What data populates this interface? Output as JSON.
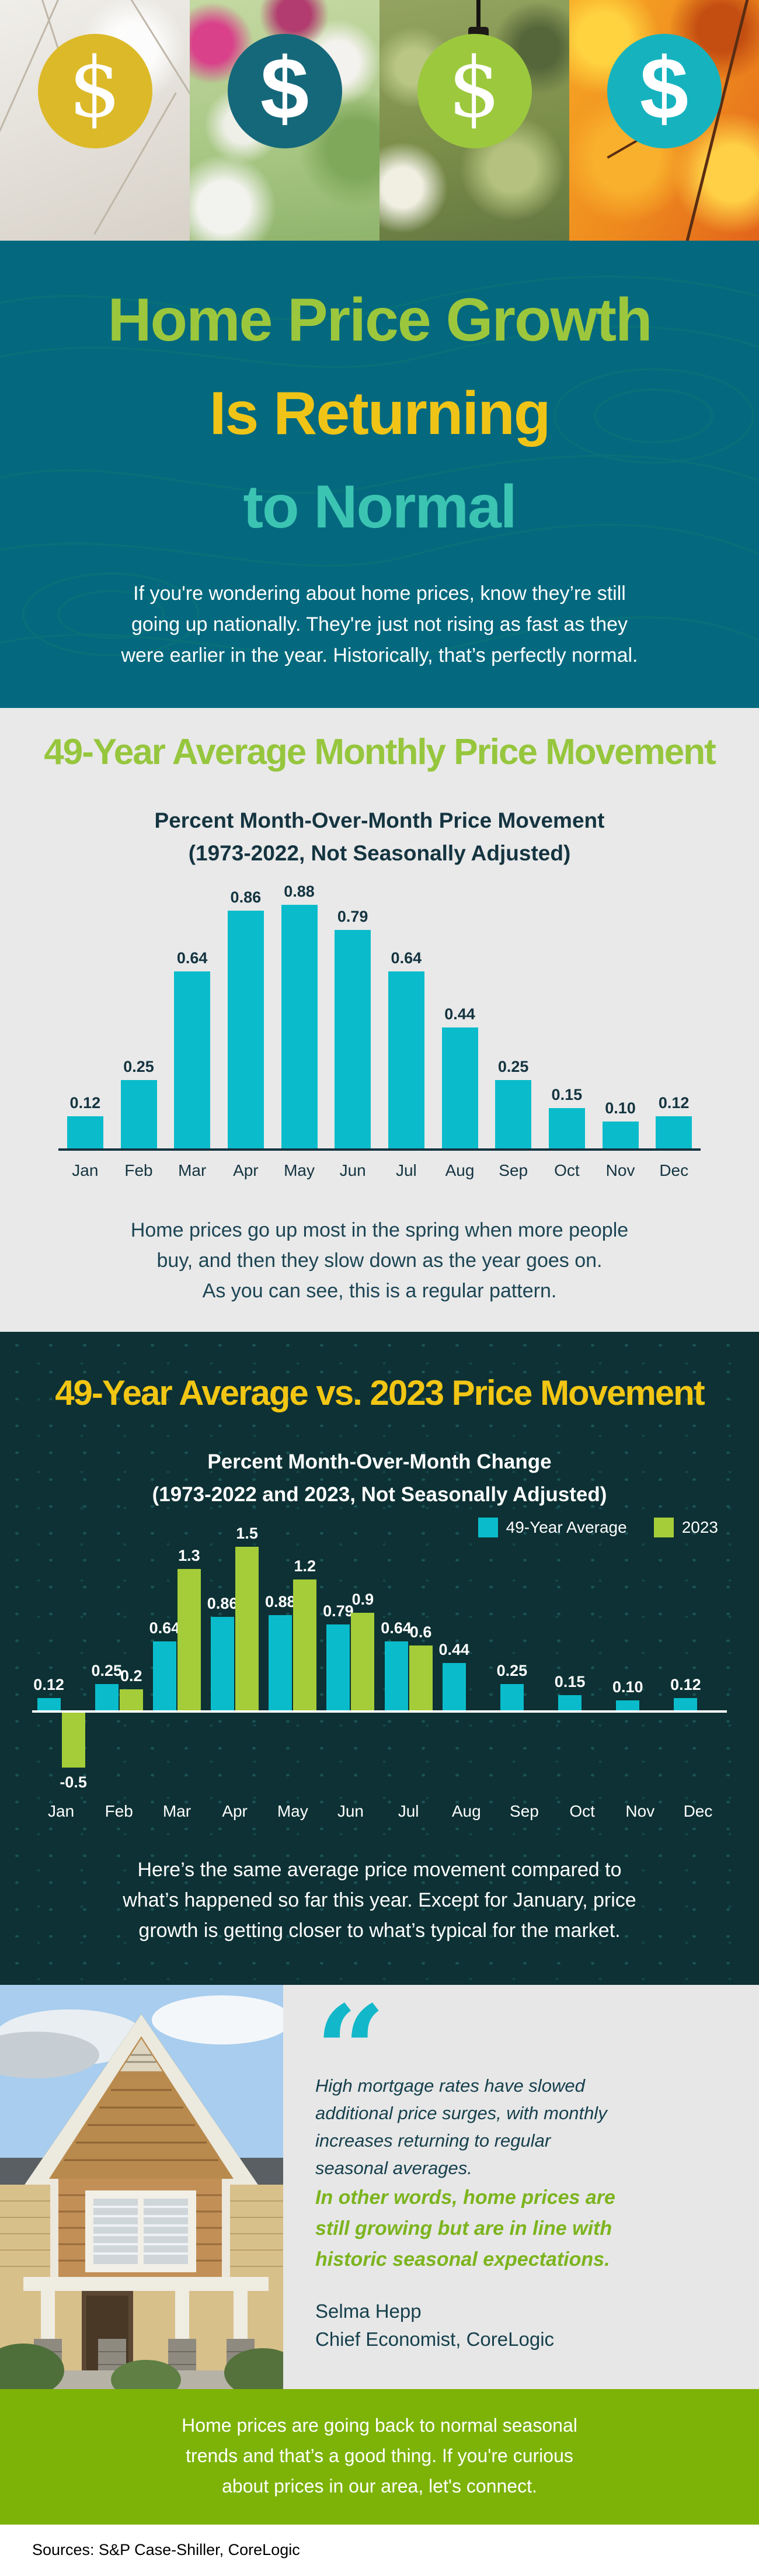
{
  "page": {
    "title_lines": [
      "Home Price Growth",
      "Is Returning",
      "to Normal"
    ],
    "intro_lines": [
      "If you're wondering about home prices, know they’re still",
      "going up nationally. They're just not rising as fast as they",
      "were earlier in the year. Historically, that’s perfectly normal."
    ]
  },
  "photos": [
    {
      "season": "winter-bare-branches",
      "symbol": "$",
      "circle_color": "#dcb929"
    },
    {
      "season": "spring-flowers",
      "symbol": "$",
      "circle_color": "#15687a"
    },
    {
      "season": "summer-garden-lightbulb",
      "symbol": "$",
      "circle_color": "#9cc83e"
    },
    {
      "season": "autumn-leaves",
      "symbol": "$",
      "circle_color": "#16b3bf"
    }
  ],
  "section_one": {
    "heading": "49-Year Average Monthly Price Movement",
    "subtitle_lines": [
      "Percent Month-Over-Month Price Movement",
      "(1973-2022, Not Seasonally Adjusted)"
    ],
    "caption_lines": [
      "Home prices go up most in the spring when more people",
      "buy, and then they slow down as the year goes on.",
      "As you can see, this is a regular pattern."
    ]
  },
  "section_two": {
    "heading": "49-Year Average vs. 2023 Price Movement",
    "subtitle_lines": [
      "Percent Month-Over-Month Change",
      "(1973-2022 and 2023, Not Seasonally Adjusted)"
    ],
    "legend": [
      {
        "label": "49-Year Average",
        "color": "#0abccb"
      },
      {
        "label": "2023",
        "color": "#a5cd39"
      }
    ],
    "caption_lines": [
      "Here’s the same average price movement compared to",
      "what’s happened so far this year. Except for January, price",
      "growth is getting closer to what’s typical for the market."
    ]
  },
  "quote": {
    "mark": "“",
    "lines": [
      "High mortgage rates have slowed",
      "additional price surges, with monthly",
      "increases returning to regular",
      "seasonal averages."
    ],
    "emphasis_lines": [
      "In other words, home prices are",
      "still growing but are in line with",
      "historic seasonal expectations."
    ],
    "name": "Selma Hepp",
    "role": "Chief Economist, CoreLogic"
  },
  "cta": {
    "lines": [
      "Home prices are going back to normal seasonal",
      "trends and that’s a good thing. If you're curious",
      "about prices in our area, let's connect."
    ]
  },
  "footer": {
    "sources": "Sources: S&P Case-Shiller, CoreLogic"
  },
  "chart_data": [
    {
      "type": "bar",
      "title": "49-Year Average Monthly Price Movement",
      "subtitle": "Percent Month-Over-Month Price Movement (1973-2022, Not Seasonally Adjusted)",
      "categories": [
        "Jan",
        "Feb",
        "Mar",
        "Apr",
        "May",
        "Jun",
        "Jul",
        "Aug",
        "Sep",
        "Oct",
        "Nov",
        "Dec"
      ],
      "values": [
        0.12,
        0.25,
        0.64,
        0.86,
        0.88,
        0.79,
        0.64,
        0.44,
        0.25,
        0.15,
        0.1,
        0.12
      ],
      "labels": [
        "0.12",
        "0.25",
        "0.64",
        "0.86",
        "0.88",
        "0.79",
        "0.64",
        "0.44",
        "0.25",
        "0.15",
        "0.10",
        "0.12"
      ],
      "bar_color": "#0abccb",
      "label_color": "#143440",
      "axis_color": "#143440",
      "xlabel": "",
      "ylabel": "",
      "ylim": [
        0,
        0.95
      ],
      "grid": false,
      "legend_position": "none"
    },
    {
      "type": "grouped-bar",
      "title": "49-Year Average vs. 2023 Price Movement",
      "subtitle": "Percent Month-Over-Month Change (1973-2022 and 2023, Not Seasonally Adjusted)",
      "categories": [
        "Jan",
        "Feb",
        "Mar",
        "Apr",
        "May",
        "Jun",
        "Jul",
        "Aug",
        "Sep",
        "Oct",
        "Nov",
        "Dec"
      ],
      "series": [
        {
          "name": "49-Year Average",
          "color": "#0abccb",
          "values": [
            0.12,
            0.25,
            0.64,
            0.86,
            0.88,
            0.79,
            0.64,
            0.44,
            0.25,
            0.15,
            0.1,
            0.12
          ],
          "labels": [
            "0.12",
            "0.25",
            "0.64",
            "0.86",
            "0.88",
            "0.79",
            "0.64",
            "0.44",
            "0.25",
            "0.15",
            "0.10",
            "0.12"
          ]
        },
        {
          "name": "2023",
          "color": "#a5cd39",
          "values": [
            -0.5,
            0.2,
            1.3,
            1.5,
            1.2,
            0.9,
            0.6,
            null,
            null,
            null,
            null,
            null
          ],
          "labels": [
            "-0.5",
            "0.2",
            "1.3",
            "1.5",
            "1.2",
            "0.9",
            "0.6",
            null,
            null,
            null,
            null,
            null
          ]
        }
      ],
      "label_color": "#ffffff",
      "axis_color": "#ffffff",
      "xlabel": "",
      "ylabel": "",
      "ylim": [
        -0.6,
        1.6
      ],
      "grid": false,
      "legend_position": "top-right"
    }
  ]
}
